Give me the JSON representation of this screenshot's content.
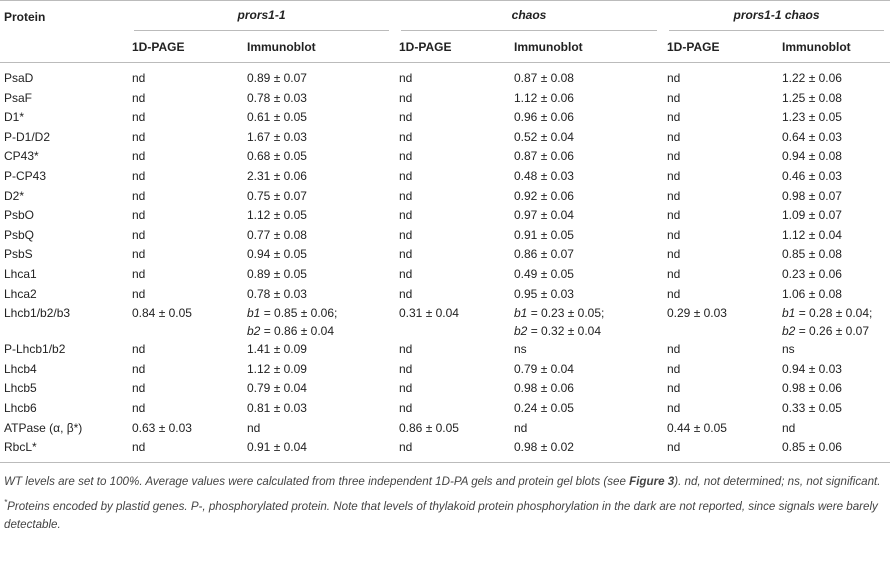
{
  "table": {
    "header": {
      "protein": "Protein",
      "groups": [
        "prors1-1",
        "chaos",
        "prors1-1 chaos"
      ],
      "subheaders": [
        "1D-PAGE",
        "Immunoblot",
        "1D-PAGE",
        "Immunoblot",
        "1D-PAGE",
        "Immunoblot"
      ]
    },
    "rows": [
      [
        "PsaD",
        "nd",
        "0.89 ± 0.07",
        "nd",
        "0.87 ± 0.08",
        "nd",
        "1.22 ± 0.06"
      ],
      [
        "PsaF",
        "nd",
        "0.78 ± 0.03",
        "nd",
        "1.12 ± 0.06",
        "nd",
        "1.25 ± 0.08"
      ],
      [
        "D1*",
        "nd",
        "0.61 ± 0.05",
        "nd",
        "0.96 ± 0.06",
        "nd",
        "1.23 ± 0.05"
      ],
      [
        "P-D1/D2",
        "nd",
        "1.67 ± 0.03",
        "nd",
        "0.52 ± 0.04",
        "nd",
        "0.64 ± 0.03"
      ],
      [
        "CP43*",
        "nd",
        "0.68 ± 0.05",
        "nd",
        "0.87 ± 0.06",
        "nd",
        "0.94 ± 0.08"
      ],
      [
        "P-CP43",
        "nd",
        "2.31 ± 0.06",
        "nd",
        "0.48 ± 0.03",
        "nd",
        "0.46 ± 0.03"
      ],
      [
        "D2*",
        "nd",
        "0.75 ± 0.07",
        "nd",
        "0.92 ± 0.06",
        "nd",
        "0.98 ± 0.07"
      ],
      [
        "PsbO",
        "nd",
        "1.12 ± 0.05",
        "nd",
        "0.97 ± 0.04",
        "nd",
        "1.09 ± 0.07"
      ],
      [
        "PsbQ",
        "nd",
        "0.77 ± 0.08",
        "nd",
        "0.91 ± 0.05",
        "nd",
        "1.12 ± 0.04"
      ],
      [
        "PsbS",
        "nd",
        "0.94 ± 0.05",
        "nd",
        "0.86 ± 0.07",
        "nd",
        "0.85 ± 0.08"
      ],
      [
        "Lhca1",
        "nd",
        "0.89 ± 0.05",
        "nd",
        "0.49 ± 0.05",
        "nd",
        "0.23 ± 0.06"
      ],
      [
        "Lhca2",
        "nd",
        "0.78 ± 0.03",
        "nd",
        "0.95 ± 0.03",
        "nd",
        "1.06 ± 0.08"
      ],
      [
        "Lhcb1/b2/b3",
        "0.84 ± 0.05",
        [
          {
            "var": "b1",
            "rest": " = 0.85 ± 0.06;"
          },
          {
            "var": "b2",
            "rest": " = 0.86 ± 0.04"
          }
        ],
        "0.31 ± 0.04",
        [
          {
            "var": "b1",
            "rest": " = 0.23 ± 0.05;"
          },
          {
            "var": "b2",
            "rest": " = 0.32 ± 0.04"
          }
        ],
        "0.29 ± 0.03",
        [
          {
            "var": "b1",
            "rest": " = 0.28 ± 0.04;"
          },
          {
            "var": "b2",
            "rest": " = 0.26 ± 0.07"
          }
        ]
      ],
      [
        "P-Lhcb1/b2",
        "nd",
        "1.41 ± 0.09",
        "nd",
        "ns",
        "nd",
        "ns"
      ],
      [
        "Lhcb4",
        "nd",
        "1.12 ± 0.09",
        "nd",
        "0.79 ± 0.04",
        "nd",
        "0.94 ± 0.03"
      ],
      [
        "Lhcb5",
        "nd",
        "0.79 ± 0.04",
        "nd",
        "0.98 ± 0.06",
        "nd",
        "0.98 ± 0.06"
      ],
      [
        "Lhcb6",
        "nd",
        "0.81 ± 0.03",
        "nd",
        "0.24 ± 0.05",
        "nd",
        "0.33 ± 0.05"
      ],
      [
        "ATPase (α, β*)",
        "0.63 ± 0.03",
        "nd",
        "0.86 ± 0.05",
        "nd",
        "0.44 ± 0.05",
        "nd"
      ],
      [
        "RbcL*",
        "nd",
        "0.91 ± 0.04",
        "nd",
        "0.98 ± 0.02",
        "nd",
        "0.85 ± 0.06"
      ]
    ],
    "footnotes": [
      [
        {
          "text": "WT levels are set to 100%. Average values were calculated from three independent 1D-PA gels and protein gel blots (see "
        },
        {
          "ref": "Figure 3"
        },
        {
          "text": "). nd, not determined; ns, not significant."
        }
      ],
      [
        {
          "mark": "*"
        },
        {
          "text": "Proteins encoded by plastid genes. P-, phosphorylated protein. Note that levels of thylakoid protein phosphorylation in the dark are not reported, since signals were barely detectable."
        }
      ]
    ]
  }
}
